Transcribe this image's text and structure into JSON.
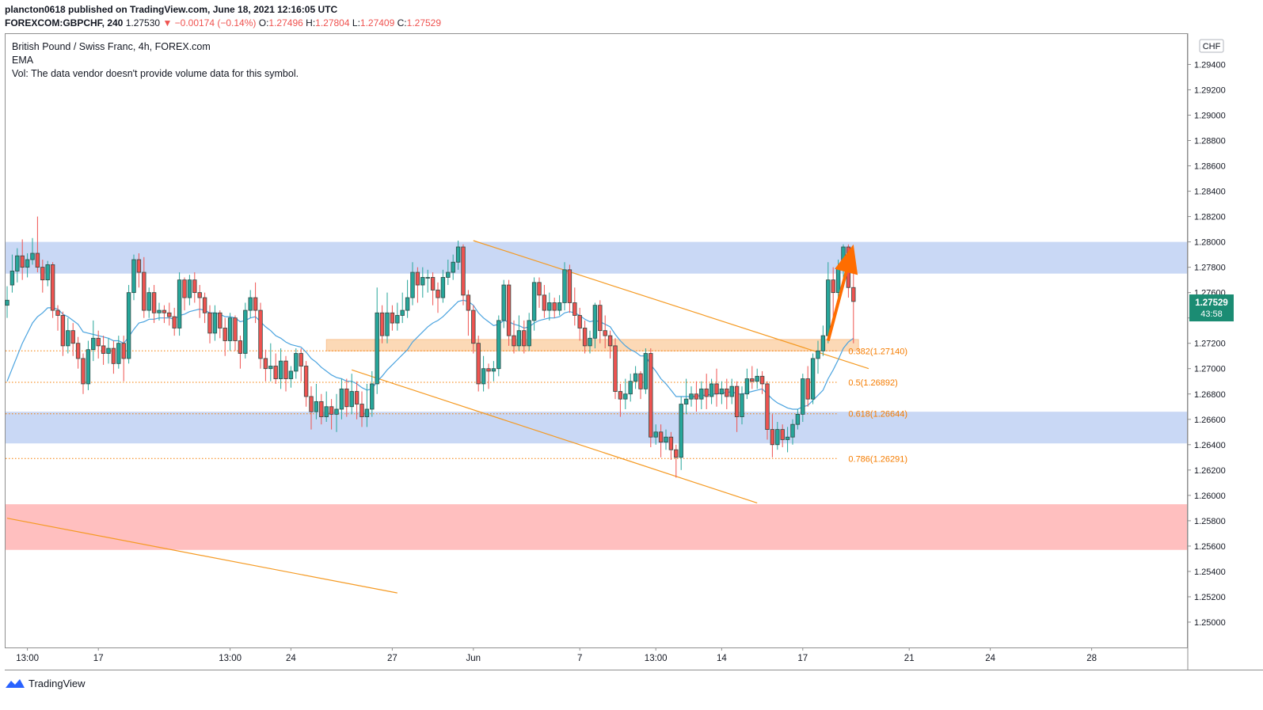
{
  "header": {
    "publisher_line": "plancton0618 published on TradingView.com, June 18, 2021 12:16:05 UTC",
    "symbol": "FOREXCOM:GBPCHF, 240",
    "last": "1.27530",
    "change": "▼ −0.00174 (−0.14%)",
    "o_label": "O:",
    "o_value": "1.27496",
    "h_label": "H:",
    "h_value": "1.27804",
    "l_label": "L:",
    "l_value": "1.27409",
    "c_label": "C:",
    "c_value": "1.27529"
  },
  "legend": {
    "title": "British Pound / Swiss Franc, 4h, FOREX.com",
    "ema": "EMA",
    "vol": "Vol: The data vendor doesn't provide volume data for this symbol."
  },
  "price_badge": {
    "price": "1.27529",
    "countdown": "43:58"
  },
  "currency_label": "CHF",
  "footer": {
    "brand": "TradingView"
  },
  "chart_data": {
    "type": "candlestick",
    "ylim": [
      1.248,
      1.2964
    ],
    "y_ticks": [
      "1.29400",
      "1.29200",
      "1.29000",
      "1.28800",
      "1.28600",
      "1.28400",
      "1.28200",
      "1.28000",
      "1.27800",
      "1.27600",
      "1.27400",
      "1.27200",
      "1.27000",
      "1.26800",
      "1.26600",
      "1.26400",
      "1.26200",
      "1.26000",
      "1.25800",
      "1.25600",
      "1.25400",
      "1.25200",
      "1.25000"
    ],
    "x_ticks": [
      {
        "label": "13:00",
        "i": 4
      },
      {
        "label": "17",
        "i": 18
      },
      {
        "label": "13:00",
        "i": 44
      },
      {
        "label": "24",
        "i": 56
      },
      {
        "label": "27",
        "i": 76
      },
      {
        "label": "Jun",
        "i": 92
      },
      {
        "label": "7",
        "i": 113
      },
      {
        "label": "13:00",
        "i": 128
      },
      {
        "label": "14",
        "i": 141
      },
      {
        "label": "17",
        "i": 157
      },
      {
        "label": "21",
        "i": 178
      },
      {
        "label": "24",
        "i": 194
      },
      {
        "label": "28",
        "i": 214
      }
    ],
    "fib_levels": [
      {
        "label": "0.382(1.27140)",
        "price": 1.2714
      },
      {
        "label": "0.5(1.26892)",
        "price": 1.26892
      },
      {
        "label": "0.618(1.26644)",
        "price": 1.26644
      },
      {
        "label": "0.786(1.26291)",
        "price": 1.26291
      }
    ],
    "zones": [
      {
        "name": "resistance",
        "top": 1.28,
        "bottom": 1.2775,
        "color": "#c9d8f5"
      },
      {
        "name": "support",
        "top": 1.2666,
        "bottom": 1.2641,
        "color": "#c9d8f5"
      },
      {
        "name": "demand",
        "top": 1.2593,
        "bottom": 1.2557,
        "color": "#ffbfbf"
      },
      {
        "name": "fib-zone",
        "top": 1.2723,
        "bottom": 1.2714,
        "i0": 63,
        "i1": 168,
        "color": "#fcd9b6"
      }
    ],
    "trendlines": [
      {
        "i0": 92,
        "p0": 1.2801,
        "i1": 170,
        "p1": 1.27
      },
      {
        "i0": 68,
        "p0": 1.2699,
        "i1": 148,
        "p1": 1.2594
      },
      {
        "i0": 0,
        "p0": 1.2582,
        "i1": 77,
        "p1": 1.2523
      }
    ],
    "arrow": {
      "i0": 162,
      "p0": 1.2722,
      "i1": 167,
      "p1": 1.2798,
      "color": "#ff6d00"
    },
    "up_color": "#26a69a",
    "down_color": "#ef5350",
    "candle_color": "#2e4a45",
    "ema_color": "#4aa3df",
    "candles": [
      [
        1.275,
        1.2754,
        1.274,
        1.2765
      ],
      [
        1.2766,
        1.2777,
        1.276,
        1.279
      ],
      [
        1.2777,
        1.2789,
        1.2768,
        1.2795
      ],
      [
        1.2789,
        1.278,
        1.277,
        1.2802
      ],
      [
        1.278,
        1.2786,
        1.2772,
        1.2791
      ],
      [
        1.2786,
        1.2791,
        1.2782,
        1.2803
      ],
      [
        1.2791,
        1.278,
        1.2776,
        1.282
      ],
      [
        1.278,
        1.277,
        1.276,
        1.2786
      ],
      [
        1.277,
        1.2782,
        1.2765,
        1.2785
      ],
      [
        1.2782,
        1.2746,
        1.274,
        1.2784
      ],
      [
        1.2746,
        1.2742,
        1.273,
        1.275
      ],
      [
        1.2742,
        1.2718,
        1.271,
        1.2745
      ],
      [
        1.2718,
        1.273,
        1.2712,
        1.274
      ],
      [
        1.273,
        1.272,
        1.271,
        1.2736
      ],
      [
        1.272,
        1.2708,
        1.27,
        1.2725
      ],
      [
        1.2708,
        1.2688,
        1.268,
        1.2712
      ],
      [
        1.2688,
        1.2715,
        1.2683,
        1.2722
      ],
      [
        1.2715,
        1.2724,
        1.2706,
        1.2738
      ],
      [
        1.2724,
        1.2718,
        1.2708,
        1.273
      ],
      [
        1.2718,
        1.2712,
        1.2703,
        1.2726
      ],
      [
        1.2712,
        1.2716,
        1.2704,
        1.2724
      ],
      [
        1.2716,
        1.2704,
        1.2696,
        1.2722
      ],
      [
        1.2704,
        1.272,
        1.27,
        1.2726
      ],
      [
        1.272,
        1.2708,
        1.269,
        1.2726
      ],
      [
        1.2708,
        1.276,
        1.2704,
        1.2766
      ],
      [
        1.276,
        1.2786,
        1.2754,
        1.279
      ],
      [
        1.2786,
        1.2776,
        1.2764,
        1.2791
      ],
      [
        1.2776,
        1.2746,
        1.274,
        1.2788
      ],
      [
        1.2746,
        1.276,
        1.274,
        1.2764
      ],
      [
        1.276,
        1.2744,
        1.2736,
        1.2766
      ],
      [
        1.2744,
        1.2746,
        1.2738,
        1.2752
      ],
      [
        1.2746,
        1.2744,
        1.2736,
        1.275
      ],
      [
        1.2744,
        1.2741,
        1.2734,
        1.2752
      ],
      [
        1.2741,
        1.2732,
        1.2726,
        1.2748
      ],
      [
        1.2732,
        1.277,
        1.2726,
        1.2776
      ],
      [
        1.277,
        1.2756,
        1.2746,
        1.2772
      ],
      [
        1.2756,
        1.277,
        1.275,
        1.2774
      ],
      [
        1.277,
        1.276,
        1.2752,
        1.2776
      ],
      [
        1.276,
        1.2756,
        1.274,
        1.2766
      ],
      [
        1.2756,
        1.2744,
        1.2736,
        1.276
      ],
      [
        1.2744,
        1.2728,
        1.272,
        1.275
      ],
      [
        1.2728,
        1.2744,
        1.2722,
        1.275
      ],
      [
        1.2744,
        1.2732,
        1.2724,
        1.2746
      ],
      [
        1.2732,
        1.2722,
        1.271,
        1.274
      ],
      [
        1.2722,
        1.274,
        1.2714,
        1.2744
      ],
      [
        1.274,
        1.2722,
        1.2714,
        1.2742
      ],
      [
        1.2722,
        1.2712,
        1.27,
        1.2726
      ],
      [
        1.2712,
        1.2746,
        1.2708,
        1.2752
      ],
      [
        1.2746,
        1.2756,
        1.274,
        1.2762
      ],
      [
        1.2756,
        1.2746,
        1.2736,
        1.2768
      ],
      [
        1.2746,
        1.2708,
        1.27,
        1.2752
      ],
      [
        1.2708,
        1.27,
        1.269,
        1.2715
      ],
      [
        1.27,
        1.2702,
        1.269,
        1.272
      ],
      [
        1.2702,
        1.2692,
        1.2688,
        1.2712
      ],
      [
        1.2692,
        1.2706,
        1.2684,
        1.2716
      ],
      [
        1.2706,
        1.2692,
        1.2682,
        1.271
      ],
      [
        1.2692,
        1.2698,
        1.2685,
        1.2702
      ],
      [
        1.2698,
        1.2712,
        1.2692,
        1.2716
      ],
      [
        1.2712,
        1.2702,
        1.269,
        1.2716
      ],
      [
        1.2702,
        1.2678,
        1.267,
        1.2706
      ],
      [
        1.2678,
        1.2666,
        1.2652,
        1.2686
      ],
      [
        1.2666,
        1.2674,
        1.266,
        1.2688
      ],
      [
        1.2674,
        1.2662,
        1.2656,
        1.268
      ],
      [
        1.2662,
        1.267,
        1.2658,
        1.2682
      ],
      [
        1.267,
        1.2664,
        1.2652,
        1.2676
      ],
      [
        1.2664,
        1.2668,
        1.265,
        1.268
      ],
      [
        1.2668,
        1.2684,
        1.266,
        1.2692
      ],
      [
        1.2684,
        1.267,
        1.2662,
        1.2692
      ],
      [
        1.267,
        1.2682,
        1.2664,
        1.2696
      ],
      [
        1.2682,
        1.2672,
        1.266,
        1.269
      ],
      [
        1.2672,
        1.2662,
        1.2654,
        1.2682
      ],
      [
        1.2662,
        1.2668,
        1.2654,
        1.2688
      ],
      [
        1.2668,
        1.2688,
        1.2662,
        1.2698
      ],
      [
        1.2688,
        1.2744,
        1.268,
        1.2764
      ],
      [
        1.2744,
        1.2726,
        1.272,
        1.275
      ],
      [
        1.2726,
        1.2744,
        1.272,
        1.276
      ],
      [
        1.2744,
        1.2736,
        1.273,
        1.275
      ],
      [
        1.2736,
        1.2742,
        1.273,
        1.2752
      ],
      [
        1.2742,
        1.2746,
        1.2736,
        1.276
      ],
      [
        1.2746,
        1.2756,
        1.274,
        1.277
      ],
      [
        1.2756,
        1.2776,
        1.275,
        1.2784
      ],
      [
        1.2776,
        1.2766,
        1.2752,
        1.278
      ],
      [
        1.2766,
        1.2772,
        1.2756,
        1.278
      ],
      [
        1.2772,
        1.2772,
        1.276,
        1.2778
      ],
      [
        1.2772,
        1.2762,
        1.275,
        1.2776
      ],
      [
        1.2762,
        1.2756,
        1.2744,
        1.2768
      ],
      [
        1.2756,
        1.2772,
        1.2752,
        1.2778
      ],
      [
        1.2772,
        1.2776,
        1.2766,
        1.2786
      ],
      [
        1.2776,
        1.2784,
        1.277,
        1.279
      ],
      [
        1.2784,
        1.2796,
        1.2778,
        1.2801
      ],
      [
        1.2796,
        1.2758,
        1.275,
        1.2798
      ],
      [
        1.2758,
        1.2746,
        1.2726,
        1.2762
      ],
      [
        1.2746,
        1.272,
        1.2712,
        1.275
      ],
      [
        1.272,
        1.2688,
        1.2682,
        1.2726
      ],
      [
        1.2688,
        1.27,
        1.2682,
        1.271
      ],
      [
        1.27,
        1.2698,
        1.2684,
        1.2704
      ],
      [
        1.2698,
        1.27,
        1.269,
        1.2706
      ],
      [
        1.27,
        1.2738,
        1.2694,
        1.2742
      ],
      [
        1.2738,
        1.2766,
        1.2732,
        1.277
      ],
      [
        1.2766,
        1.2726,
        1.2718,
        1.277
      ],
      [
        1.2726,
        1.2718,
        1.2712,
        1.2738
      ],
      [
        1.2718,
        1.273,
        1.2714,
        1.2742
      ],
      [
        1.273,
        1.2718,
        1.2712,
        1.2738
      ],
      [
        1.2718,
        1.2738,
        1.2714,
        1.2744
      ],
      [
        1.2738,
        1.2768,
        1.273,
        1.2772
      ],
      [
        1.2768,
        1.2758,
        1.2748,
        1.2772
      ],
      [
        1.2758,
        1.2746,
        1.274,
        1.2766
      ],
      [
        1.2746,
        1.2752,
        1.2738,
        1.276
      ],
      [
        1.2752,
        1.2746,
        1.274,
        1.2756
      ],
      [
        1.2746,
        1.2752,
        1.2742,
        1.2758
      ],
      [
        1.2752,
        1.2778,
        1.2746,
        1.2784
      ],
      [
        1.2778,
        1.2752,
        1.2744,
        1.2782
      ],
      [
        1.2752,
        1.2742,
        1.2734,
        1.2764
      ],
      [
        1.2742,
        1.2732,
        1.2722,
        1.2748
      ],
      [
        1.2732,
        1.2718,
        1.2712,
        1.2738
      ],
      [
        1.2718,
        1.2724,
        1.2712,
        1.273
      ],
      [
        1.2724,
        1.275,
        1.2716,
        1.2752
      ],
      [
        1.275,
        1.273,
        1.272,
        1.2754
      ],
      [
        1.273,
        1.2726,
        1.2716,
        1.2742
      ],
      [
        1.2726,
        1.2718,
        1.2708,
        1.273
      ],
      [
        1.2718,
        1.2682,
        1.2676,
        1.2724
      ],
      [
        1.2682,
        1.2676,
        1.2662,
        1.2688
      ],
      [
        1.2676,
        1.268,
        1.2668,
        1.2692
      ],
      [
        1.268,
        1.269,
        1.2674,
        1.2696
      ],
      [
        1.269,
        1.2696,
        1.2684,
        1.2702
      ],
      [
        1.2696,
        1.2684,
        1.2676,
        1.2698
      ],
      [
        1.2684,
        1.2712,
        1.268,
        1.2716
      ],
      [
        1.2712,
        1.2646,
        1.2638,
        1.2716
      ],
      [
        1.2646,
        1.265,
        1.264,
        1.2656
      ],
      [
        1.265,
        1.2642,
        1.263,
        1.2656
      ],
      [
        1.2642,
        1.2646,
        1.2636,
        1.2652
      ],
      [
        1.2646,
        1.2636,
        1.2628,
        1.265
      ],
      [
        1.2636,
        1.263,
        1.2614,
        1.264
      ],
      [
        1.263,
        1.2672,
        1.262,
        1.2678
      ],
      [
        1.2672,
        1.2676,
        1.2664,
        1.2692
      ],
      [
        1.2676,
        1.268,
        1.267,
        1.2686
      ],
      [
        1.268,
        1.2676,
        1.2666,
        1.269
      ],
      [
        1.2676,
        1.2684,
        1.2668,
        1.269
      ],
      [
        1.2684,
        1.2678,
        1.2668,
        1.2696
      ],
      [
        1.2678,
        1.2688,
        1.2672,
        1.2692
      ],
      [
        1.2688,
        1.268,
        1.267,
        1.27
      ],
      [
        1.268,
        1.2684,
        1.2672,
        1.269
      ],
      [
        1.2684,
        1.2678,
        1.2668,
        1.2692
      ],
      [
        1.2678,
        1.2686,
        1.2672,
        1.2692
      ],
      [
        1.2686,
        1.2662,
        1.265,
        1.269
      ],
      [
        1.2662,
        1.268,
        1.2656,
        1.2686
      ],
      [
        1.268,
        1.2692,
        1.2676,
        1.27
      ],
      [
        1.2692,
        1.269,
        1.2684,
        1.2702
      ],
      [
        1.269,
        1.2694,
        1.2684,
        1.27
      ],
      [
        1.2694,
        1.2688,
        1.268,
        1.2698
      ],
      [
        1.2688,
        1.2652,
        1.2644,
        1.269
      ],
      [
        1.2652,
        1.264,
        1.263,
        1.2664
      ],
      [
        1.264,
        1.2652,
        1.2636,
        1.2658
      ],
      [
        1.2652,
        1.2644,
        1.2638,
        1.2656
      ],
      [
        1.2644,
        1.2646,
        1.2634,
        1.2654
      ],
      [
        1.2646,
        1.2656,
        1.264,
        1.266
      ],
      [
        1.2656,
        1.2664,
        1.2652,
        1.2668
      ],
      [
        1.2664,
        1.2692,
        1.2658,
        1.2696
      ],
      [
        1.2692,
        1.2676,
        1.267,
        1.2702
      ],
      [
        1.2676,
        1.2708,
        1.2672,
        1.2712
      ],
      [
        1.2708,
        1.2714,
        1.2696,
        1.2722
      ],
      [
        1.2714,
        1.2726,
        1.271,
        1.2734
      ],
      [
        1.2726,
        1.277,
        1.272,
        1.2784
      ],
      [
        1.277,
        1.276,
        1.274,
        1.278
      ],
      [
        1.276,
        1.278,
        1.2752,
        1.2786
      ],
      [
        1.278,
        1.2796,
        1.277,
        1.2798
      ],
      [
        1.2796,
        1.2764,
        1.2756,
        1.2798
      ],
      [
        1.2764,
        1.2753,
        1.272,
        1.278
      ]
    ],
    "ema": [
      1.269,
      1.27,
      1.271,
      1.272,
      1.2728,
      1.2736,
      1.2741,
      1.2744,
      1.2748,
      1.2748,
      1.2747,
      1.2743,
      1.2741,
      1.2738,
      1.2735,
      1.2729,
      1.2728,
      1.2727,
      1.2726,
      1.2725,
      1.2724,
      1.2722,
      1.2722,
      1.272,
      1.2725,
      1.2731,
      1.2736,
      1.2737,
      1.2739,
      1.2739,
      1.274,
      1.274,
      1.274,
      1.2739,
      1.2742,
      1.2743,
      1.2745,
      1.2746,
      1.2747,
      1.2746,
      1.2744,
      1.2744,
      1.2743,
      1.2741,
      1.2741,
      1.274,
      1.2737,
      1.2738,
      1.274,
      1.2741,
      1.2737,
      1.2733,
      1.273,
      1.2726,
      1.2724,
      1.2721,
      1.2719,
      1.2718,
      1.2717,
      1.2713,
      1.2708,
      1.2705,
      1.2701,
      1.2698,
      1.2695,
      1.2693,
      1.2692,
      1.269,
      1.269,
      1.2688,
      1.2685,
      1.2683,
      1.2684,
      1.269,
      1.2694,
      1.2699,
      1.2703,
      1.2707,
      1.2711,
      1.2715,
      1.2721,
      1.2725,
      1.2729,
      1.2733,
      1.2736,
      1.2738,
      1.2741,
      1.2745,
      1.2749,
      1.2753,
      1.2754,
      1.2753,
      1.275,
      1.2744,
      1.274,
      1.2737,
      1.2734,
      1.2735,
      1.2738,
      1.2737,
      1.2735,
      1.2734,
      1.2732,
      1.2733,
      1.2736,
      1.2738,
      1.2739,
      1.274,
      1.274,
      1.2741,
      1.2744,
      1.2745,
      1.2744,
      1.2742,
      1.2739,
      1.2737,
      1.2738,
      1.2737,
      1.2735,
      1.2733,
      1.2727,
      1.2722,
      1.2718,
      1.2715,
      1.2713,
      1.271,
      1.271,
      1.2703,
      1.2698,
      1.2692,
      1.2688,
      1.2683,
      1.2678,
      1.2678,
      1.2678,
      1.2678,
      1.2678,
      1.2679,
      1.2679,
      1.268,
      1.268,
      1.2681,
      1.2681,
      1.2682,
      1.268,
      1.268,
      1.2681,
      1.2682,
      1.2683,
      1.2684,
      1.268,
      1.2676,
      1.2673,
      1.2671,
      1.2669,
      1.2668,
      1.2668,
      1.267,
      1.2671,
      1.2675,
      1.2679,
      1.2683,
      1.2692,
      1.2699,
      1.2707,
      1.2716,
      1.2721,
      1.2724
    ]
  }
}
